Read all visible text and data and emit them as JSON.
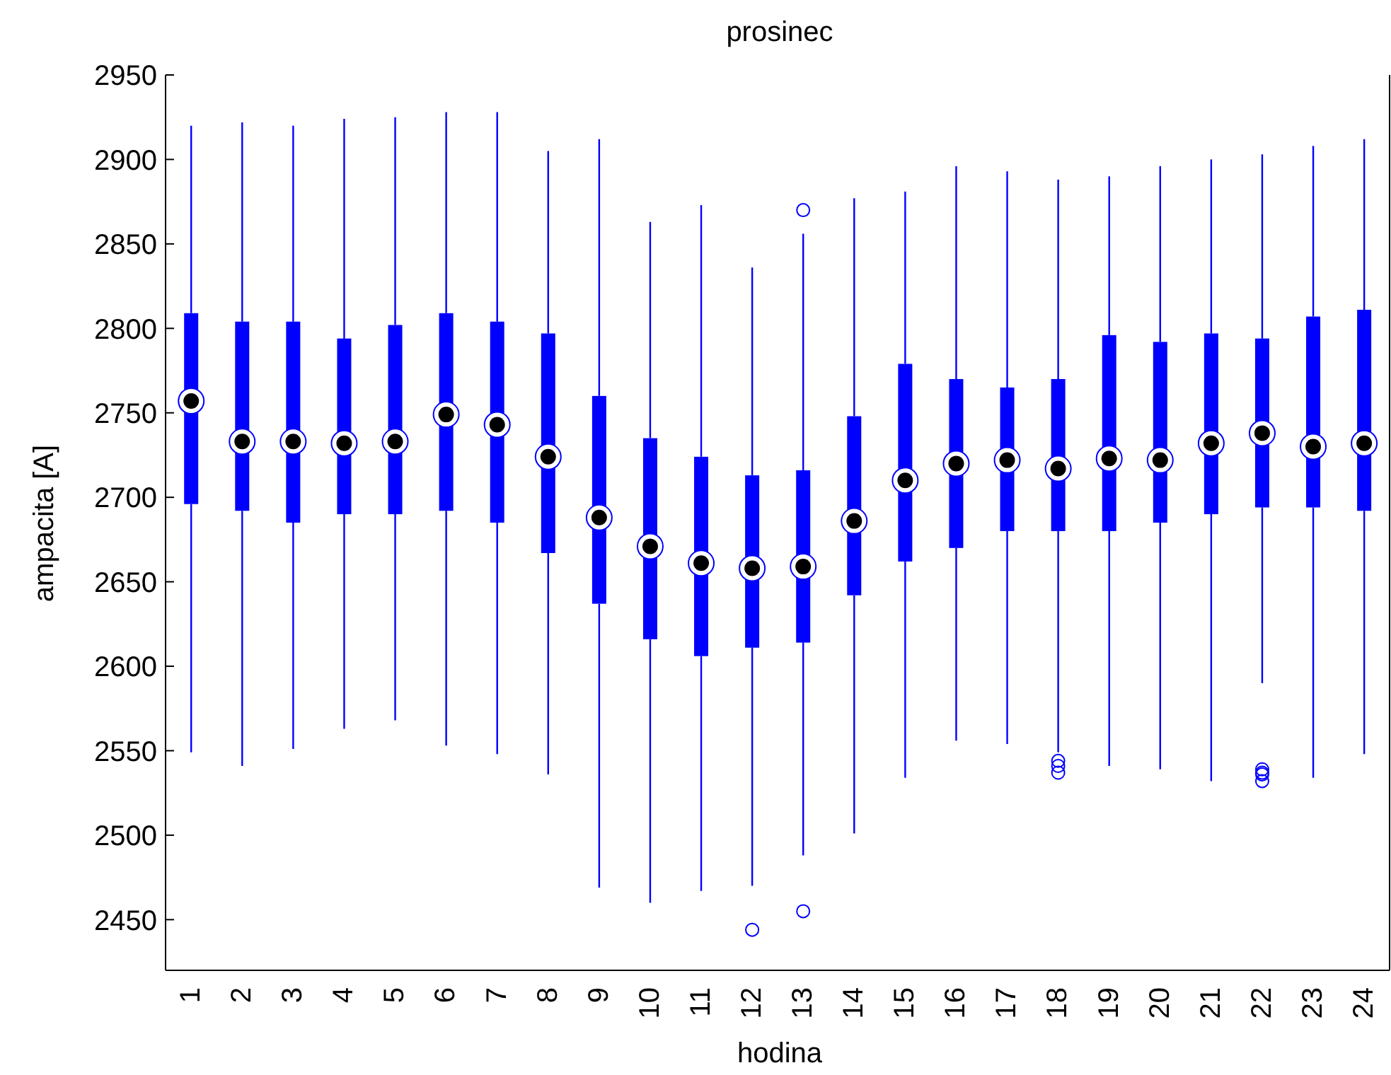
{
  "chart_data": {
    "type": "box",
    "title": "prosinec",
    "xlabel": "hodina",
    "ylabel": "ampacita [A]",
    "color": "#0000ff",
    "categories": [
      "1",
      "2",
      "3",
      "4",
      "5",
      "6",
      "7",
      "8",
      "9",
      "10",
      "11",
      "12",
      "13",
      "14",
      "15",
      "16",
      "17",
      "18",
      "19",
      "20",
      "21",
      "22",
      "23",
      "24"
    ],
    "ylim": [
      2420,
      2950
    ],
    "yticks": [
      2450,
      2500,
      2550,
      2600,
      2650,
      2700,
      2750,
      2800,
      2850,
      2900,
      2950
    ],
    "boxes": [
      {
        "low": 2549,
        "q1": 2696,
        "median": 2757,
        "q3": 2809,
        "high": 2920
      },
      {
        "low": 2541,
        "q1": 2692,
        "median": 2733,
        "q3": 2804,
        "high": 2922
      },
      {
        "low": 2551,
        "q1": 2685,
        "median": 2733,
        "q3": 2804,
        "high": 2920
      },
      {
        "low": 2563,
        "q1": 2690,
        "median": 2732,
        "q3": 2794,
        "high": 2924
      },
      {
        "low": 2568,
        "q1": 2690,
        "median": 2733,
        "q3": 2802,
        "high": 2925
      },
      {
        "low": 2553,
        "q1": 2692,
        "median": 2749,
        "q3": 2809,
        "high": 2928
      },
      {
        "low": 2548,
        "q1": 2685,
        "median": 2743,
        "q3": 2804,
        "high": 2928
      },
      {
        "low": 2536,
        "q1": 2667,
        "median": 2724,
        "q3": 2797,
        "high": 2905
      },
      {
        "low": 2469,
        "q1": 2637,
        "median": 2688,
        "q3": 2760,
        "high": 2912
      },
      {
        "low": 2460,
        "q1": 2616,
        "median": 2671,
        "q3": 2735,
        "high": 2863
      },
      {
        "low": 2467,
        "q1": 2606,
        "median": 2661,
        "q3": 2724,
        "high": 2873
      },
      {
        "low": 2470,
        "q1": 2611,
        "median": 2658,
        "q3": 2713,
        "high": 2836,
        "outliers": [
          2444
        ]
      },
      {
        "low": 2488,
        "q1": 2614,
        "median": 2659,
        "q3": 2716,
        "high": 2856,
        "outliers": [
          2870,
          2455
        ]
      },
      {
        "low": 2501,
        "q1": 2642,
        "median": 2686,
        "q3": 2748,
        "high": 2877
      },
      {
        "low": 2534,
        "q1": 2662,
        "median": 2710,
        "q3": 2779,
        "high": 2881
      },
      {
        "low": 2556,
        "q1": 2670,
        "median": 2720,
        "q3": 2770,
        "high": 2896
      },
      {
        "low": 2554,
        "q1": 2680,
        "median": 2722,
        "q3": 2765,
        "high": 2893
      },
      {
        "low": 2549,
        "q1": 2680,
        "median": 2717,
        "q3": 2770,
        "high": 2888,
        "outliers": [
          2544,
          2541,
          2537
        ]
      },
      {
        "low": 2541,
        "q1": 2680,
        "median": 2723,
        "q3": 2796,
        "high": 2890
      },
      {
        "low": 2539,
        "q1": 2685,
        "median": 2722,
        "q3": 2792,
        "high": 2896
      },
      {
        "low": 2532,
        "q1": 2690,
        "median": 2732,
        "q3": 2797,
        "high": 2900
      },
      {
        "low": 2590,
        "q1": 2694,
        "median": 2738,
        "q3": 2794,
        "high": 2903,
        "outliers": [
          2539,
          2537,
          2536,
          2532
        ]
      },
      {
        "low": 2534,
        "q1": 2694,
        "median": 2730,
        "q3": 2807,
        "high": 2908
      },
      {
        "low": 2548,
        "q1": 2692,
        "median": 2732,
        "q3": 2811,
        "high": 2912
      }
    ]
  }
}
